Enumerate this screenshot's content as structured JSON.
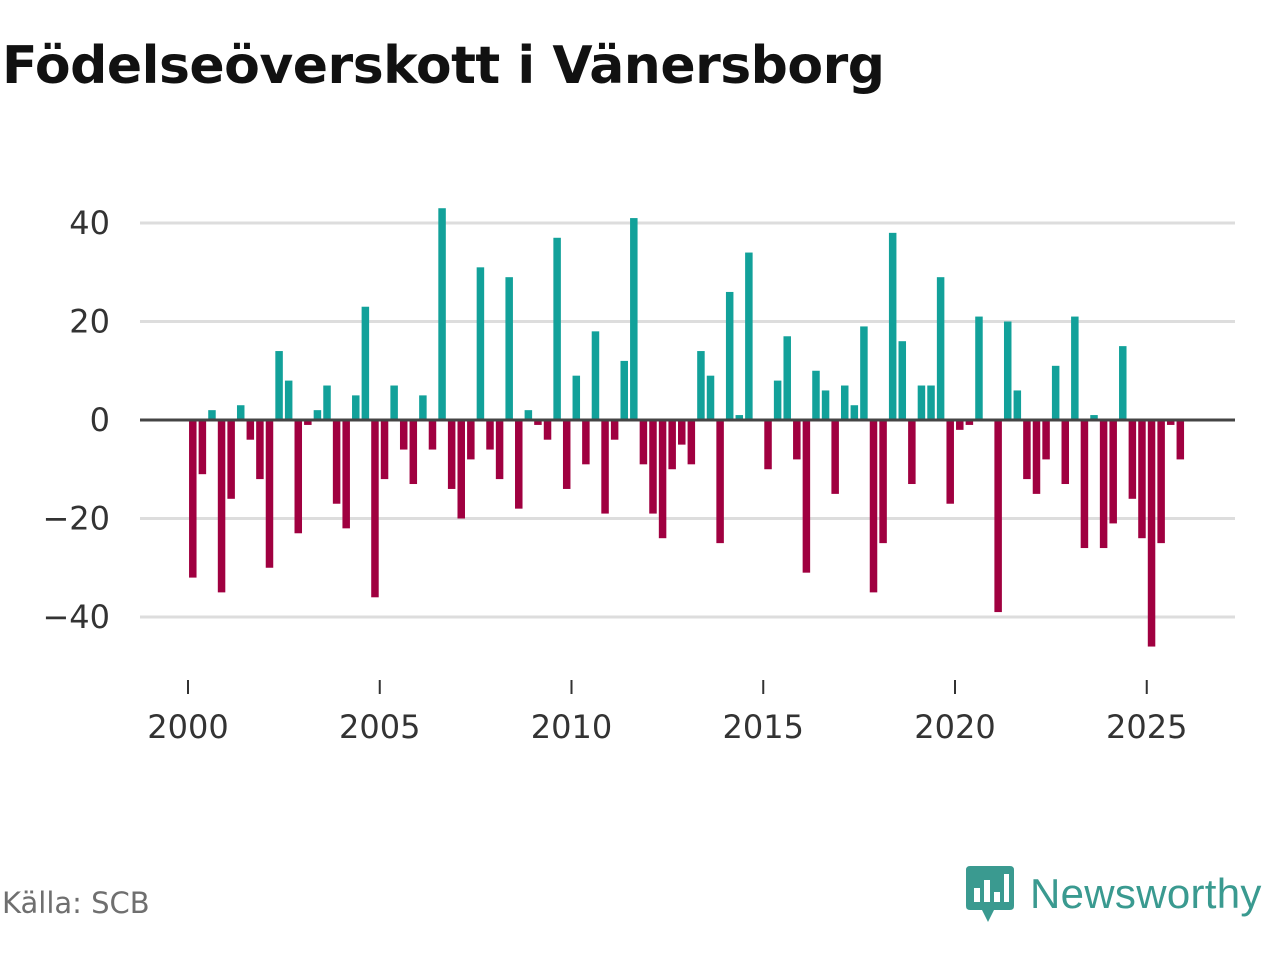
{
  "title": "Födelseöverskott i Vänersborg",
  "source": "Källa: SCB",
  "brand": "Newsworthy",
  "colors": {
    "positive": "#12a19a",
    "negative": "#a00040",
    "grid": "#dddddd",
    "zero_line": "#444444",
    "brand": "#3a9a90"
  },
  "chart_data": {
    "type": "bar",
    "title": "Födelseöverskott i Vänersborg",
    "xlabel": "",
    "ylabel": "",
    "ylim": [
      -46,
      46
    ],
    "xlim": [
      1999.2,
      2027.3
    ],
    "yticks": [
      40,
      20,
      0,
      -20,
      -40
    ],
    "ytick_labels": [
      "40",
      "20",
      "0",
      "−20",
      "−40"
    ],
    "xticks": [
      2000,
      2005,
      2010,
      2015,
      2020,
      2025
    ],
    "xtick_labels": [
      "2000",
      "2005",
      "2010",
      "2015",
      "2020",
      "2025"
    ],
    "grid": true,
    "frequency": "quarterly",
    "start": 2000.0,
    "values": [
      -32,
      -11,
      2,
      -35,
      -16,
      3,
      -4,
      -12,
      -30,
      14,
      8,
      -23,
      -1,
      2,
      7,
      -17,
      -22,
      5,
      23,
      -36,
      -12,
      7,
      -6,
      -13,
      5,
      -6,
      43,
      -14,
      -20,
      -8,
      31,
      -6,
      -12,
      29,
      -18,
      2,
      -1,
      -4,
      37,
      -14,
      9,
      -9,
      18,
      -19,
      -4,
      12,
      41,
      -9,
      -19,
      -24,
      -10,
      -5,
      -9,
      14,
      9,
      -25,
      26,
      1,
      34,
      0,
      -10,
      8,
      17,
      -8,
      -31,
      10,
      6,
      -15,
      7,
      3,
      19,
      -35,
      -25,
      38,
      16,
      -13,
      7,
      7,
      29,
      -17,
      -2,
      -1,
      21,
      0,
      -39,
      20,
      6,
      -12,
      -15,
      -8,
      11,
      -13,
      21,
      -26,
      1,
      -26,
      -21,
      15,
      -16,
      -24,
      -46,
      -25,
      -1,
      -8
    ]
  }
}
